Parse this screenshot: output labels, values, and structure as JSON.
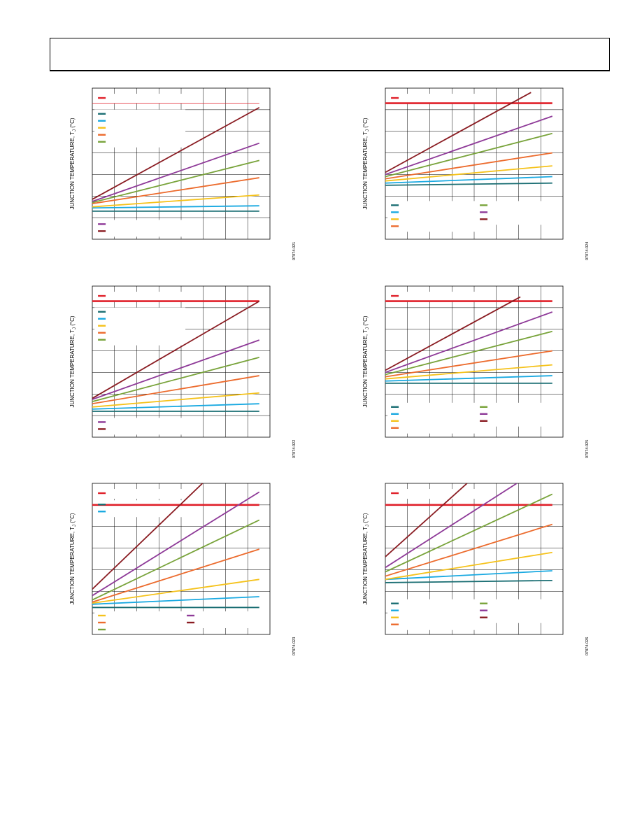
{
  "page": {
    "ylabel_main": "JUNCTION TEMPERATURE, T",
    "ylabel_sub": "J",
    "ylabel_unit": " (°C)"
  },
  "colors": {
    "limit": "#e0202a",
    "teal": "#1a6e73",
    "blue": "#19a9e1",
    "yellow": "#f5c21b",
    "orange": "#ec6b2d",
    "green": "#78a33a",
    "purple": "#8e3a98",
    "maroon": "#8a1c22"
  },
  "chart_data": [
    {
      "type": "line",
      "id": "fig-21",
      "figure_code": "07874-021",
      "xlim": [
        0,
        1
      ],
      "ylim": [
        0,
        7
      ],
      "limit_y": 6.3,
      "limit_thin": true,
      "legend_boxes": [
        {
          "x0": 0.02,
          "y0": 0.935,
          "series": [
            "limit"
          ]
        },
        {
          "x0": 0.02,
          "y0": 0.83,
          "series": [
            "teal",
            "blue",
            "yellow",
            "orange",
            "green"
          ]
        },
        {
          "x0": 0.02,
          "y0": 0.1,
          "series": [
            "purple",
            "maroon"
          ]
        }
      ],
      "series": [
        {
          "color": "teal",
          "x": [
            0,
            0.94
          ],
          "y": [
            1.3,
            1.3
          ]
        },
        {
          "color": "blue",
          "x": [
            0,
            0.94
          ],
          "y": [
            1.45,
            1.55
          ]
        },
        {
          "color": "yellow",
          "x": [
            0,
            0.94
          ],
          "y": [
            1.5,
            2.05
          ]
        },
        {
          "color": "orange",
          "x": [
            0,
            0.94
          ],
          "y": [
            1.65,
            2.85
          ]
        },
        {
          "color": "green",
          "x": [
            0,
            0.94
          ],
          "y": [
            1.7,
            3.65
          ]
        },
        {
          "color": "purple",
          "x": [
            0,
            0.94
          ],
          "y": [
            1.75,
            4.45
          ]
        },
        {
          "color": "maroon",
          "x": [
            0,
            0.94
          ],
          "y": [
            1.85,
            6.1
          ]
        }
      ]
    },
    {
      "type": "line",
      "id": "fig-24",
      "figure_code": "07874-024",
      "xlim": [
        0,
        1
      ],
      "ylim": [
        0,
        7
      ],
      "limit_y": 6.3,
      "limit_thin": false,
      "legend_boxes": [
        {
          "x0": 0.02,
          "y0": 0.935,
          "series": [
            "limit"
          ]
        },
        {
          "x0": 0.02,
          "y0": 0.225,
          "series": [
            "teal",
            "blue",
            "yellow",
            "orange"
          ]
        },
        {
          "x0": 0.52,
          "y0": 0.225,
          "series": [
            "green",
            "purple",
            "maroon"
          ]
        }
      ],
      "series": [
        {
          "color": "teal",
          "x": [
            0,
            0.94
          ],
          "y": [
            2.5,
            2.6
          ]
        },
        {
          "color": "blue",
          "x": [
            0,
            0.94
          ],
          "y": [
            2.6,
            2.9
          ]
        },
        {
          "color": "yellow",
          "x": [
            0,
            0.94
          ],
          "y": [
            2.7,
            3.4
          ]
        },
        {
          "color": "orange",
          "x": [
            0,
            0.94
          ],
          "y": [
            2.8,
            4.0
          ]
        },
        {
          "color": "green",
          "x": [
            0,
            0.94
          ],
          "y": [
            2.9,
            4.9
          ]
        },
        {
          "color": "purple",
          "x": [
            0,
            0.94
          ],
          "y": [
            3.0,
            5.7
          ]
        },
        {
          "color": "maroon",
          "x": [
            0,
            0.82
          ],
          "y": [
            3.1,
            6.8
          ]
        }
      ]
    },
    {
      "type": "line",
      "id": "fig-22",
      "figure_code": "07874-022",
      "xlim": [
        0,
        1
      ],
      "ylim": [
        0,
        7
      ],
      "limit_y": 6.3,
      "limit_thin": false,
      "legend_boxes": [
        {
          "x0": 0.02,
          "y0": 0.935,
          "series": [
            "limit"
          ]
        },
        {
          "x0": 0.02,
          "y0": 0.83,
          "series": [
            "teal",
            "blue",
            "yellow",
            "orange",
            "green"
          ]
        },
        {
          "x0": 0.02,
          "y0": 0.1,
          "series": [
            "purple",
            "maroon"
          ]
        }
      ],
      "series": [
        {
          "color": "teal",
          "x": [
            0,
            0.94
          ],
          "y": [
            1.2,
            1.2
          ]
        },
        {
          "color": "blue",
          "x": [
            0,
            0.94
          ],
          "y": [
            1.3,
            1.55
          ]
        },
        {
          "color": "yellow",
          "x": [
            0,
            0.94
          ],
          "y": [
            1.4,
            2.05
          ]
        },
        {
          "color": "orange",
          "x": [
            0,
            0.94
          ],
          "y": [
            1.55,
            2.85
          ]
        },
        {
          "color": "green",
          "x": [
            0,
            0.94
          ],
          "y": [
            1.65,
            3.7
          ]
        },
        {
          "color": "purple",
          "x": [
            0,
            0.94
          ],
          "y": [
            1.75,
            4.5
          ]
        },
        {
          "color": "maroon",
          "x": [
            0,
            0.94
          ],
          "y": [
            1.8,
            6.3
          ]
        }
      ]
    },
    {
      "type": "line",
      "id": "fig-25",
      "figure_code": "07874-025",
      "xlim": [
        0,
        1
      ],
      "ylim": [
        0,
        7
      ],
      "limit_y": 6.3,
      "limit_thin": false,
      "legend_boxes": [
        {
          "x0": 0.02,
          "y0": 0.935,
          "series": [
            "limit"
          ]
        },
        {
          "x0": 0.02,
          "y0": 0.2,
          "series": [
            "teal",
            "blue",
            "yellow",
            "orange"
          ]
        },
        {
          "x0": 0.52,
          "y0": 0.2,
          "series": [
            "green",
            "purple",
            "maroon"
          ]
        }
      ],
      "series": [
        {
          "color": "teal",
          "x": [
            0,
            0.94
          ],
          "y": [
            2.5,
            2.5
          ]
        },
        {
          "color": "blue",
          "x": [
            0,
            0.94
          ],
          "y": [
            2.6,
            2.85
          ]
        },
        {
          "color": "yellow",
          "x": [
            0,
            0.94
          ],
          "y": [
            2.7,
            3.35
          ]
        },
        {
          "color": "orange",
          "x": [
            0,
            0.94
          ],
          "y": [
            2.8,
            4.0
          ]
        },
        {
          "color": "green",
          "x": [
            0,
            0.94
          ],
          "y": [
            2.9,
            4.9
          ]
        },
        {
          "color": "purple",
          "x": [
            0,
            0.94
          ],
          "y": [
            3.0,
            5.8
          ]
        },
        {
          "color": "maroon",
          "x": [
            0,
            0.76
          ],
          "y": [
            3.1,
            6.5
          ]
        }
      ]
    },
    {
      "type": "line",
      "id": "fig-23",
      "figure_code": "07874-023",
      "xlim": [
        0,
        1
      ],
      "ylim": [
        0,
        7
      ],
      "limit_y": 6.0,
      "limit_thin": false,
      "legend_boxes": [
        {
          "x0": 0.02,
          "y0": 0.935,
          "series": [
            "limit"
          ]
        },
        {
          "x0": 0.02,
          "y0": 0.86,
          "series": [
            "teal",
            "blue"
          ]
        },
        {
          "x0": 0.02,
          "y0": 0.125,
          "series": [
            "yellow",
            "orange",
            "green"
          ]
        },
        {
          "x0": 0.52,
          "y0": 0.125,
          "series": [
            "purple",
            "maroon"
          ]
        }
      ],
      "series": [
        {
          "color": "teal",
          "x": [
            0,
            0.94
          ],
          "y": [
            1.25,
            1.25
          ]
        },
        {
          "color": "blue",
          "x": [
            0,
            0.94
          ],
          "y": [
            1.4,
            1.75
          ]
        },
        {
          "color": "yellow",
          "x": [
            0,
            0.94
          ],
          "y": [
            1.45,
            2.55
          ]
        },
        {
          "color": "orange",
          "x": [
            0,
            0.94
          ],
          "y": [
            1.5,
            3.95
          ]
        },
        {
          "color": "green",
          "x": [
            0,
            0.94
          ],
          "y": [
            1.6,
            5.3
          ]
        },
        {
          "color": "purple",
          "x": [
            0,
            0.94
          ],
          "y": [
            1.8,
            6.6
          ]
        },
        {
          "color": "maroon",
          "x": [
            0,
            0.62
          ],
          "y": [
            2.1,
            7.0
          ]
        }
      ]
    },
    {
      "type": "line",
      "id": "fig-26",
      "figure_code": "07874-026",
      "xlim": [
        0,
        1
      ],
      "ylim": [
        0,
        7
      ],
      "limit_y": 6.0,
      "limit_thin": false,
      "legend_boxes": [
        {
          "x0": 0.02,
          "y0": 0.935,
          "series": [
            "limit"
          ]
        },
        {
          "x0": 0.02,
          "y0": 0.205,
          "series": [
            "teal",
            "blue",
            "yellow",
            "orange"
          ]
        },
        {
          "x0": 0.52,
          "y0": 0.205,
          "series": [
            "green",
            "purple",
            "maroon"
          ]
        }
      ],
      "series": [
        {
          "color": "teal",
          "x": [
            0,
            0.94
          ],
          "y": [
            2.4,
            2.5
          ]
        },
        {
          "color": "blue",
          "x": [
            0,
            0.94
          ],
          "y": [
            2.55,
            2.95
          ]
        },
        {
          "color": "yellow",
          "x": [
            0,
            0.94
          ],
          "y": [
            2.55,
            3.8
          ]
        },
        {
          "color": "orange",
          "x": [
            0,
            0.94
          ],
          "y": [
            2.7,
            5.1
          ]
        },
        {
          "color": "green",
          "x": [
            0,
            0.94
          ],
          "y": [
            2.9,
            6.5
          ]
        },
        {
          "color": "purple",
          "x": [
            0,
            0.74
          ],
          "y": [
            3.1,
            7.0
          ]
        },
        {
          "color": "maroon",
          "x": [
            0,
            0.46
          ],
          "y": [
            3.6,
            7.0
          ]
        }
      ]
    }
  ]
}
